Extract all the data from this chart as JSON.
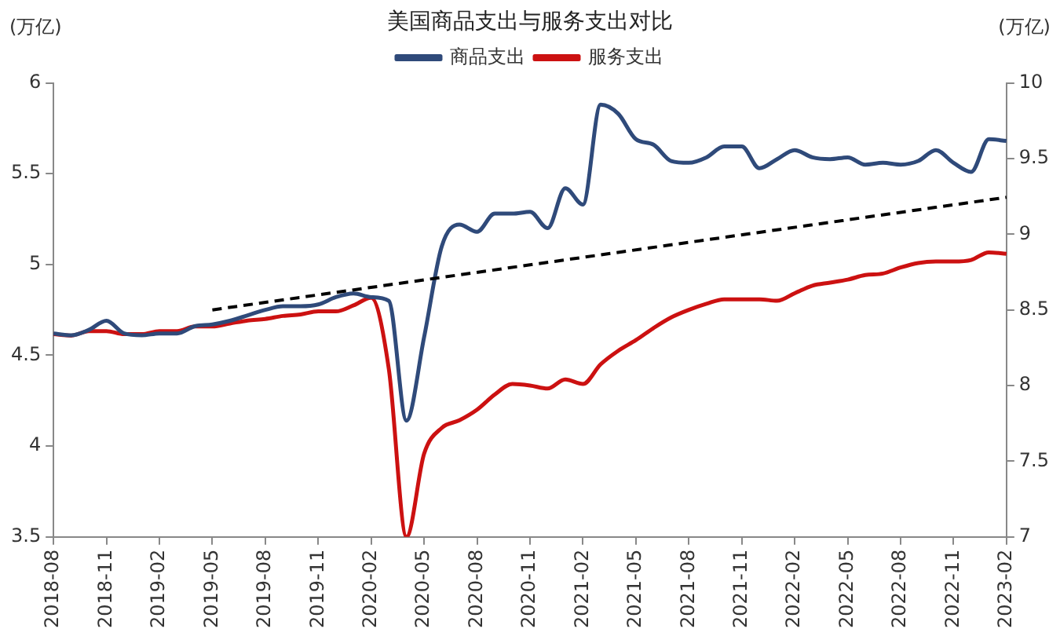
{
  "chart_data": {
    "type": "line",
    "title": "美国商品支出与服务支出对比",
    "ylabel": "(万亿)",
    "y2label": "(万亿)",
    "categories": [
      "2018-08",
      null,
      null,
      "2018-11",
      null,
      null,
      "2019-02",
      null,
      null,
      "2019-05",
      null,
      null,
      "2019-08",
      null,
      null,
      "2019-11",
      null,
      null,
      "2020-02",
      null,
      null,
      "2020-05",
      null,
      null,
      "2020-08",
      null,
      null,
      "2020-11",
      null,
      null,
      "2021-02",
      null,
      null,
      "2021-05",
      null,
      null,
      "2021-08",
      null,
      null,
      "2021-11",
      null,
      null,
      "2022-02",
      null,
      null,
      "2022-05",
      null,
      null,
      "2022-08",
      null,
      null,
      "2022-11",
      null,
      null,
      "2023-02"
    ],
    "series": [
      {
        "name": "商品支出",
        "color": "#2f4a7a",
        "values": [
          4.62,
          4.61,
          4.64,
          4.69,
          4.62,
          4.61,
          4.62,
          4.62,
          4.66,
          4.67,
          4.69,
          4.72,
          4.75,
          4.77,
          4.77,
          4.78,
          4.82,
          4.84,
          4.82,
          4.8,
          4.14,
          4.6,
          5.1,
          5.22,
          5.18,
          5.28,
          5.28,
          5.29,
          5.2,
          5.42,
          5.33,
          5.88,
          5.83,
          5.69,
          5.66,
          5.57,
          5.56,
          5.59,
          5.65,
          5.65,
          5.53,
          5.58,
          5.63,
          5.59,
          5.58,
          5.59,
          5.55,
          5.56,
          5.55,
          5.57,
          5.63,
          5.56,
          5.51,
          5.69,
          5.68
        ]
      },
      {
        "name": "服务支出",
        "color": "#cc1111",
        "axis": "y2",
        "values": [
          8.34,
          8.33,
          8.36,
          8.36,
          8.34,
          8.34,
          8.36,
          8.36,
          8.39,
          8.39,
          8.41,
          8.43,
          8.44,
          8.46,
          8.47,
          8.49,
          8.49,
          8.53,
          8.58,
          8.11,
          7.0,
          7.55,
          7.72,
          7.77,
          7.84,
          7.94,
          8.01,
          8.0,
          7.98,
          8.04,
          8.01,
          8.14,
          8.23,
          8.3,
          8.38,
          8.45,
          8.5,
          8.54,
          8.57,
          8.57,
          8.57,
          8.56,
          8.61,
          8.66,
          8.68,
          8.7,
          8.73,
          8.74,
          8.78,
          8.81,
          8.82,
          8.82,
          8.83,
          8.88,
          8.87
        ]
      },
      {
        "type": "line",
        "color": "#000000",
        "line_style": "dashed",
        "values": [
          null,
          null,
          null,
          null,
          null,
          null,
          null,
          null,
          null,
          4.75,
          null,
          null,
          null,
          null,
          null,
          null,
          null,
          null,
          null,
          null,
          null,
          null,
          null,
          null,
          null,
          null,
          null,
          null,
          null,
          null,
          null,
          null,
          null,
          null,
          null,
          null,
          null,
          null,
          null,
          null,
          null,
          null,
          null,
          null,
          null,
          null,
          null,
          null,
          null,
          null,
          null,
          null,
          null,
          null,
          5.37
        ]
      }
    ],
    "ylim": [
      3.5,
      6
    ],
    "yticks": [
      3.5,
      4,
      4.5,
      5,
      5.5,
      6
    ],
    "y2lim": [
      7,
      10
    ],
    "y2ticks": [
      7,
      7.5,
      8,
      8.5,
      9,
      9.5,
      10
    ],
    "legend": "top",
    "marker": "none",
    "line_style": "solid"
  }
}
